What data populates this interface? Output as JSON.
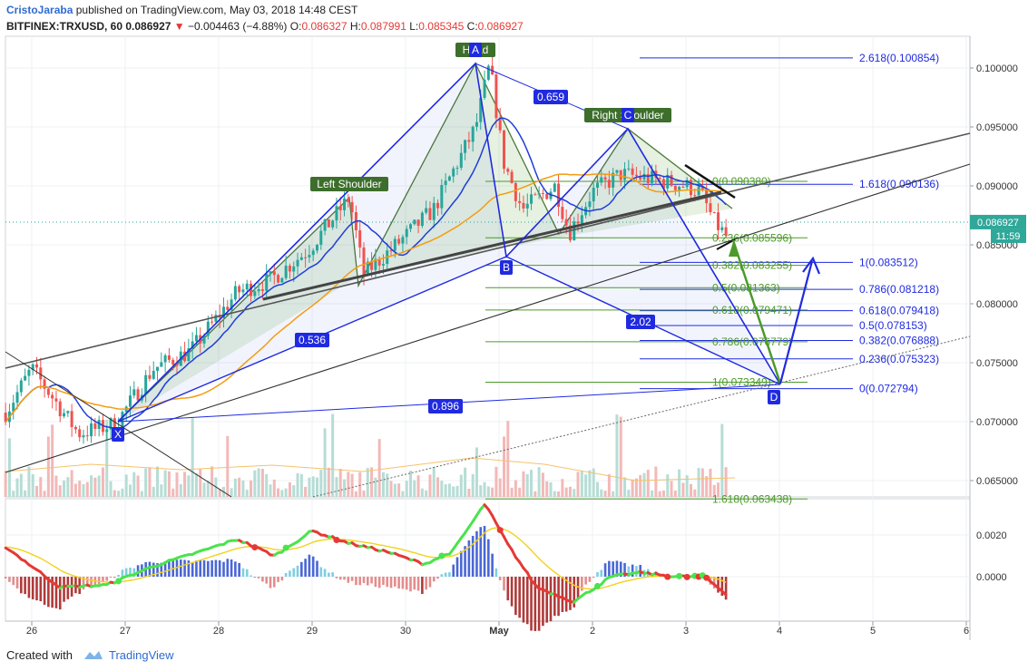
{
  "header": {
    "author": "CristoJaraba",
    "published": "published on TradingView.com, May 03, 2018 14:48 CEST",
    "symbol": "BITFINEX:TRXUSD, 60",
    "last": "0.086927",
    "change": "−0.004463 (−4.88%)",
    "o_label": "O:",
    "o": "0.086327",
    "h_label": "H:",
    "h": "0.087991",
    "l_label": "L:",
    "l": "0.085345",
    "c_label": "C:",
    "c": "0.086927"
  },
  "footer": {
    "created_with": "Created with",
    "brand": "TradingView"
  },
  "price_badge": "0.086927",
  "time_badge": "11:59",
  "colors": {
    "up": "#26a69a",
    "down": "#ef5350",
    "pattern": "#1f2ae0",
    "harmonic": "#2d6e1f",
    "fib_green": "#4c9a2a",
    "ma_blue": "#1e3fd6",
    "ma_orange": "#f39c12"
  },
  "labels": {
    "head": "Head",
    "head_letter": "A",
    "right_shoulder": "Right Shoulder",
    "right_letter": "C",
    "left_shoulder": "Left Shoulder",
    "x": "X",
    "b": "B",
    "d": "D",
    "ratio_ab": "0.659",
    "ratio_xa": "0.536",
    "ratio_bd": "2.02",
    "ratio_xd": "0.896"
  },
  "fib_blue": [
    {
      "ratio": "2.618",
      "price": "0.100854"
    },
    {
      "ratio": "1.618",
      "price": "0.090136"
    },
    {
      "ratio": "1",
      "price": "0.083512"
    },
    {
      "ratio": "0.786",
      "price": "0.081218"
    },
    {
      "ratio": "0.618",
      "price": "0.079418"
    },
    {
      "ratio": "0.5",
      "price": "0.078153"
    },
    {
      "ratio": "0.382",
      "price": "0.076888"
    },
    {
      "ratio": "0.236",
      "price": "0.075323"
    },
    {
      "ratio": "0",
      "price": "0.072794"
    }
  ],
  "fib_green": [
    {
      "ratio": "0",
      "price": "0.090380"
    },
    {
      "ratio": "0.236",
      "price": "0.085596"
    },
    {
      "ratio": "0.382",
      "price": "0.083255"
    },
    {
      "ratio": "0.5",
      "price": "0.081363"
    },
    {
      "ratio": "0.618",
      "price": "0.079471"
    },
    {
      "ratio": "0.786",
      "price": "0.076779"
    },
    {
      "ratio": "1",
      "price": "0.073349"
    },
    {
      "ratio": "1.618",
      "price": "0.063438"
    }
  ],
  "chart_data": [
    {
      "type": "candlestick",
      "title": "BITFINEX:TRXUSD, 60",
      "x_ticks": [
        "26",
        "27",
        "28",
        "29",
        "30",
        "May",
        "2",
        "3",
        "4",
        "5",
        "6"
      ],
      "y_ticks": [
        "0.100000",
        "0.095000",
        "0.090000",
        "0.085000",
        "0.080000",
        "0.075000",
        "0.070000",
        "0.065000"
      ],
      "ylim": [
        0.0635,
        0.1043
      ],
      "last_price": 0.086927,
      "pattern_points": [
        {
          "name": "X",
          "x": "Apr 26 ~22:00",
          "price": 0.0696
        },
        {
          "name": "A",
          "x": "Apr 30 ~18:00",
          "price": 0.1003
        },
        {
          "name": "B",
          "x": "May 01 ~00:00",
          "price": 0.0838
        },
        {
          "name": "C",
          "x": "May 02 ~10:00",
          "price": 0.0948
        },
        {
          "name": "D",
          "x": "May 04 ~02:00",
          "price": 0.0728
        }
      ]
    },
    {
      "type": "bar",
      "title": "MACD",
      "y_ticks": [
        "0.0020",
        "0.0000"
      ],
      "ylim": [
        -0.003,
        0.0038
      ]
    }
  ]
}
